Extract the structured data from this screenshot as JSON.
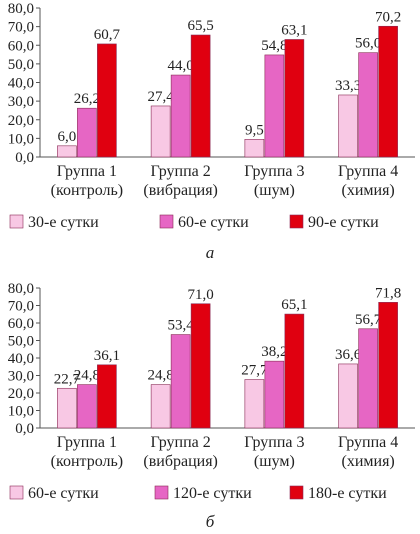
{
  "colors": {
    "series_a": [
      "#f8c8e4",
      "#e666c4",
      "#e00010"
    ],
    "series_b": [
      "#f8c8e4",
      "#e666c4",
      "#e00010"
    ],
    "bar_stroke": "#8a2a55",
    "axis": "#555555"
  },
  "chart_data": [
    {
      "type": "bar",
      "panel_label": "а",
      "categories": [
        "Группа 1\n(контроль)",
        "Группа 2\n(вибрация)",
        "Группа 3\n(шум)",
        "Группа 4\n(химия)"
      ],
      "series": [
        {
          "name": "30-е сутки",
          "values": [
            6.0,
            27.4,
            9.5,
            33.3
          ],
          "labels": [
            "6,0",
            "27,4",
            "9,5",
            "33,3"
          ]
        },
        {
          "name": "60-е сутки",
          "values": [
            26.2,
            44.0,
            54.8,
            56.0
          ],
          "labels": [
            "26,2",
            "44,0",
            "54,8",
            "56,0"
          ]
        },
        {
          "name": "90-е сутки",
          "values": [
            60.7,
            65.5,
            63.1,
            70.2
          ],
          "labels": [
            "60,7",
            "65,5",
            "63,1",
            "70,2"
          ]
        }
      ],
      "ylim": [
        0,
        80
      ],
      "yticks": [
        "0,0",
        "10,0",
        "20,0",
        "30,0",
        "40,0",
        "50,0",
        "60,0",
        "70,0",
        "80,0"
      ],
      "legend_position": "bottom",
      "grid": false
    },
    {
      "type": "bar",
      "panel_label": "б",
      "categories": [
        "Группа 1\n(контроль)",
        "Группа 2\n(вибрация)",
        "Группа 3\n(шум)",
        "Группа 4\n(химия)"
      ],
      "series": [
        {
          "name": "60-е сутки",
          "values": [
            22.7,
            24.8,
            27.7,
            36.6
          ],
          "labels": [
            "22,7",
            "24,8",
            "27,7",
            "36,6"
          ]
        },
        {
          "name": "120-е сутки",
          "values": [
            24.8,
            53.4,
            38.2,
            56.7
          ],
          "labels": [
            "24,8",
            "53,4",
            "38,2",
            "56,7"
          ]
        },
        {
          "name": "180-е сутки",
          "values": [
            36.1,
            71.0,
            65.1,
            71.8
          ],
          "labels": [
            "36,1",
            "71,0",
            "65,1",
            "71,8"
          ]
        }
      ],
      "ylim": [
        0,
        80
      ],
      "yticks": [
        "0,0",
        "10,0",
        "20,0",
        "30,0",
        "40,0",
        "50,0",
        "60,0",
        "70,0",
        "80,0"
      ],
      "legend_position": "bottom",
      "grid": false
    }
  ]
}
